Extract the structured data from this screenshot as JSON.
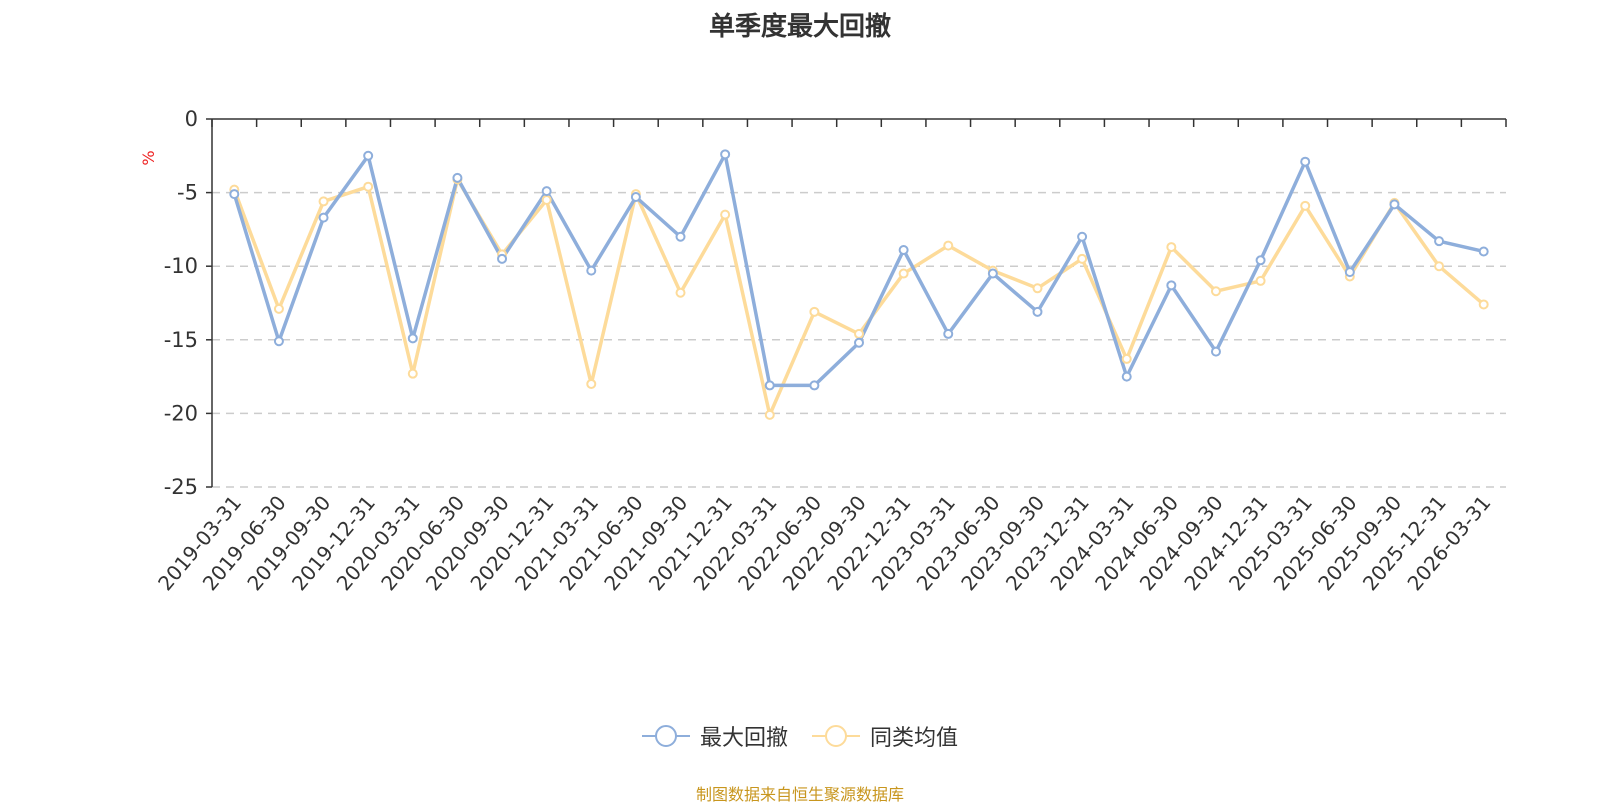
{
  "chart_data": {
    "type": "line",
    "title": "单季度最大回撤",
    "ylabel": "%",
    "ylim": [
      -25,
      0
    ],
    "yticks": [
      0,
      -5,
      -10,
      -15,
      -20,
      -25
    ],
    "grid": true,
    "legend_position": "bottom-center",
    "categories": [
      "2019-03-31",
      "2019-06-30",
      "2019-09-30",
      "2019-12-31",
      "2020-03-31",
      "2020-06-30",
      "2020-09-30",
      "2020-12-31",
      "2021-03-31",
      "2021-06-30",
      "2021-09-30",
      "2021-12-31",
      "2022-03-31",
      "2022-06-30",
      "2022-09-30",
      "2022-12-31",
      "2023-03-31",
      "2023-06-30",
      "2023-09-30",
      "2023-12-31",
      "2024-03-31",
      "2024-06-30",
      "2024-09-30",
      "2024-12-31",
      "2025-03-31",
      "2025-06-30",
      "2025-09-30",
      "2025-12-31",
      "2026-03-31"
    ],
    "series": [
      {
        "name": "最大回撤",
        "color": "#8eaedb",
        "values": [
          -5.1,
          -15.1,
          -6.7,
          -2.5,
          -14.9,
          -4.0,
          -9.5,
          -4.9,
          -10.3,
          -5.3,
          -8.0,
          -2.4,
          -18.1,
          -18.1,
          -15.2,
          -8.9,
          -14.6,
          -10.5,
          -13.1,
          -8.0,
          -17.5,
          -11.3,
          -15.8,
          -9.6,
          -2.9,
          -10.4,
          -5.8,
          -8.3,
          -9.0
        ]
      },
      {
        "name": "同类均值",
        "color": "#fddb9a",
        "values": [
          -4.8,
          -12.9,
          -5.6,
          -4.6,
          -17.3,
          -4.1,
          -9.2,
          -5.5,
          -18.0,
          -5.1,
          -11.8,
          -6.5,
          -20.1,
          -13.1,
          -14.6,
          -10.5,
          -8.6,
          -10.3,
          -11.5,
          -9.5,
          -16.3,
          -8.7,
          -11.7,
          -11.0,
          -5.9,
          -10.7,
          -5.7,
          -10.0,
          -12.6
        ]
      }
    ]
  },
  "footer": {
    "source": "制图数据来自恒生聚源数据库"
  }
}
